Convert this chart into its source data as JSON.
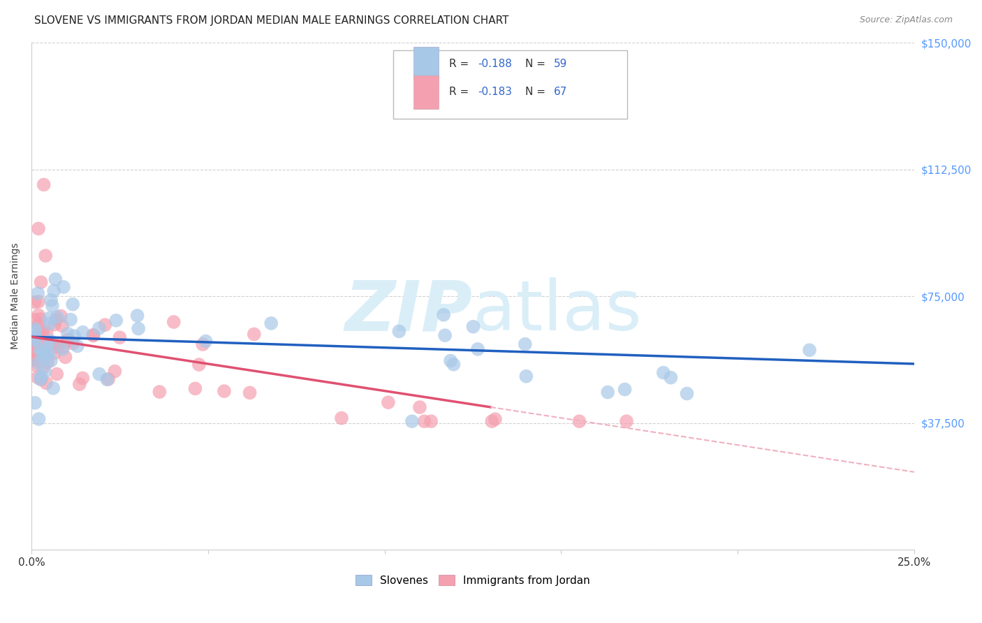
{
  "title": "SLOVENE VS IMMIGRANTS FROM JORDAN MEDIAN MALE EARNINGS CORRELATION CHART",
  "source": "Source: ZipAtlas.com",
  "ylabel": "Median Male Earnings",
  "xlim": [
    0.0,
    0.25
  ],
  "ylim": [
    0,
    150000
  ],
  "yticks": [
    0,
    37500,
    75000,
    112500,
    150000
  ],
  "ytick_labels": [
    "",
    "$37,500",
    "$75,000",
    "$112,500",
    "$150,000"
  ],
  "xticks": [
    0.0,
    0.05,
    0.1,
    0.15,
    0.2,
    0.25
  ],
  "xtick_labels": [
    "0.0%",
    "",
    "",
    "",
    "",
    "25.0%"
  ],
  "legend_label1": "Slovenes",
  "legend_label2": "Immigrants from Jordan",
  "r1": -0.188,
  "n1": 59,
  "r2": -0.183,
  "n2": 67,
  "color_blue": "#a8c8e8",
  "color_pink": "#f4a0b0",
  "color_blue_line": "#2060c0",
  "color_pink_line": "#e05070",
  "color_pink_dashed": "#f0b0c0",
  "background_color": "#ffffff",
  "watermark_color": "#daeef8",
  "grid_color": "#cccccc",
  "title_fontsize": 11,
  "tick_label_color_right": "#5599ff",
  "legend_sq_blue": "#a8c8e8",
  "legend_sq_pink": "#f4a0b0",
  "legend_text_black": "#333333",
  "legend_text_blue": "#3366cc"
}
